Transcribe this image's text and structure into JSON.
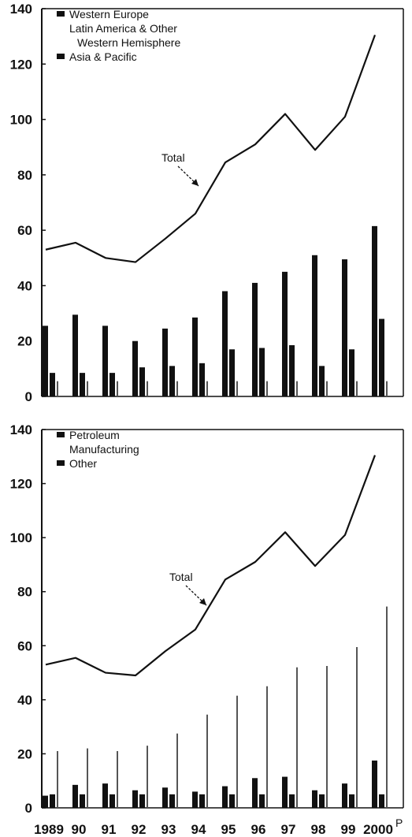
{
  "chart_data": [
    {
      "type": "bar",
      "title": "",
      "xlabel": "",
      "ylabel": "",
      "ylim": [
        0,
        140
      ],
      "yticks": [
        0,
        20,
        40,
        60,
        80,
        100,
        120,
        140
      ],
      "categories": [
        "1989",
        "90",
        "91",
        "92",
        "93",
        "94",
        "95",
        "96",
        "97",
        "98",
        "99",
        "2000"
      ],
      "legend_position": "top-left",
      "legend": [
        "Western Europe",
        "Latin America & Other Western Hemisphere",
        "Asia & Pacific"
      ],
      "series": [
        {
          "name": "Western Europe",
          "kind": "bar",
          "values": [
            25.5,
            29.5,
            25.5,
            20,
            24.5,
            28.5,
            38,
            41,
            45,
            51,
            49.5,
            61.5
          ]
        },
        {
          "name": "Latin America & Other Western Hemisphere",
          "kind": "bar",
          "values": [
            8.5,
            8.5,
            8.5,
            10.5,
            11,
            12,
            17,
            17.5,
            18.5,
            11,
            17,
            28
          ]
        },
        {
          "name": "Asia & Pacific",
          "kind": "bar",
          "values": [
            5.5,
            5.5,
            5.5,
            5.5,
            5.5,
            5.5,
            5.5,
            5.5,
            5.5,
            5.5,
            5.5,
            5.5
          ]
        },
        {
          "name": "Total",
          "kind": "line",
          "values": [
            53,
            55.5,
            50,
            48.5,
            57,
            66,
            84.5,
            91,
            102,
            89,
            101,
            130.5
          ]
        }
      ],
      "annotation": "Total"
    },
    {
      "type": "bar",
      "title": "",
      "xlabel": "",
      "ylabel": "",
      "ylim": [
        0,
        140
      ],
      "yticks": [
        0,
        20,
        40,
        60,
        80,
        100,
        120,
        140
      ],
      "categories": [
        "1989",
        "90",
        "91",
        "92",
        "93",
        "94",
        "95",
        "96",
        "97",
        "98",
        "99",
        "2000"
      ],
      "x_axis_suffix": "P",
      "legend_position": "top-left",
      "legend": [
        "Petroleum",
        "Manufacturing",
        "Other"
      ],
      "series": [
        {
          "name": "Petroleum",
          "kind": "bar",
          "values": [
            4.5,
            8.5,
            9,
            6.5,
            7.5,
            6,
            8,
            11,
            11.5,
            6.5,
            9,
            17.5
          ]
        },
        {
          "name": "Manufacturing",
          "kind": "bar",
          "values": [
            5,
            5,
            5,
            5,
            5,
            5,
            5,
            5,
            5,
            5,
            5,
            5
          ]
        },
        {
          "name": "Other",
          "kind": "bar",
          "values": [
            21,
            22,
            21,
            23,
            27.5,
            34.5,
            41.5,
            45,
            52,
            52.5,
            59.5,
            74.5
          ]
        },
        {
          "name": "Total",
          "kind": "line",
          "values": [
            53,
            55.5,
            50,
            49,
            58,
            66,
            84.5,
            91,
            102,
            89.5,
            101,
            130.5
          ]
        }
      ],
      "annotation": "Total"
    }
  ]
}
